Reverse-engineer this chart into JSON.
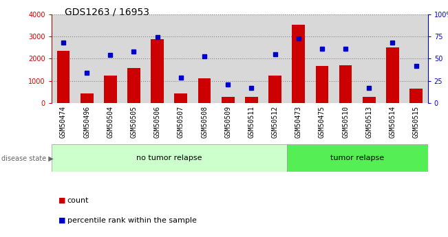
{
  "title": "GDS1263 / 16953",
  "categories": [
    "GSM50474",
    "GSM50496",
    "GSM50504",
    "GSM50505",
    "GSM50506",
    "GSM50507",
    "GSM50508",
    "GSM50509",
    "GSM50511",
    "GSM50512",
    "GSM50473",
    "GSM50475",
    "GSM50510",
    "GSM50513",
    "GSM50514",
    "GSM50515"
  ],
  "bar_values": [
    2350,
    450,
    1230,
    1570,
    2880,
    420,
    1100,
    280,
    280,
    1230,
    3520,
    1670,
    1700,
    290,
    2500,
    660
  ],
  "dot_values": [
    68,
    34,
    54,
    58,
    74,
    29,
    53,
    21,
    17,
    55,
    73,
    61,
    61,
    17,
    68,
    42
  ],
  "bar_color": "#cc0000",
  "dot_color": "#0000cc",
  "ylim_left": [
    0,
    4000
  ],
  "ylim_right": [
    0,
    100
  ],
  "yticks_left": [
    0,
    1000,
    2000,
    3000,
    4000
  ],
  "yticks_right": [
    0,
    25,
    50,
    75,
    100
  ],
  "group1_label": "no tumor relapse",
  "group2_label": "tumor relapse",
  "group1_count": 10,
  "group2_count": 6,
  "disease_state_label": "disease state",
  "legend_bar_label": "count",
  "legend_dot_label": "percentile rank within the sample",
  "plot_bg": "#d8d8d8",
  "xtick_bg": "#c0c0c0",
  "group1_bg": "#ccffcc",
  "group2_bg": "#55ee55",
  "title_fontsize": 10,
  "tick_fontsize": 7,
  "label_fontsize": 8
}
